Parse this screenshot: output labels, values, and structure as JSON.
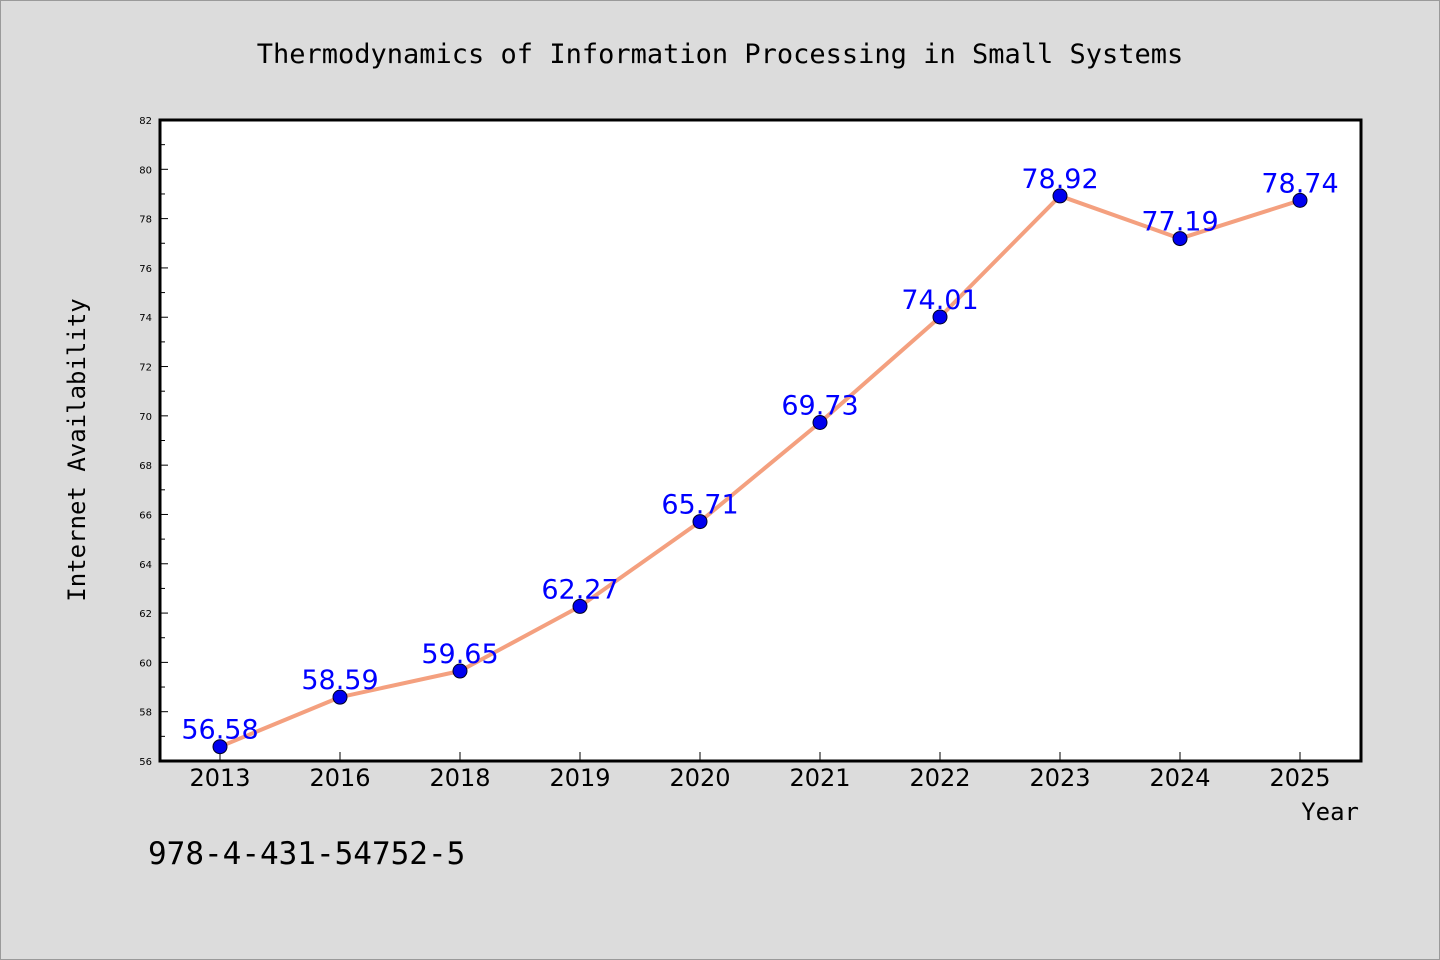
{
  "chart_data": {
    "type": "line",
    "title": "Thermodynamics of Information Processing in Small Systems",
    "xlabel": "Year",
    "ylabel": "Internet Availability",
    "categories": [
      "2013",
      "2016",
      "2018",
      "2019",
      "2020",
      "2021",
      "2022",
      "2023",
      "2024",
      "2025"
    ],
    "series": [
      {
        "values": [
          56.58,
          58.59,
          59.65,
          62.27,
          65.71,
          69.73,
          74.01,
          78.92,
          77.19,
          78.74
        ],
        "data_labels": [
          "56.58",
          "58.59",
          "59.65",
          "62.27",
          "65.71",
          "69.73",
          "74.01",
          "78.92",
          "77.19",
          "78.74"
        ]
      }
    ],
    "ylim": [
      56,
      82
    ],
    "yticks": [
      "56",
      "58",
      "60",
      "62",
      "64",
      "66",
      "68",
      "70",
      "72",
      "74",
      "76",
      "78",
      "80",
      "82"
    ],
    "grid": false,
    "line_color": "#f4a07f",
    "marker_color": "#0000ee",
    "label_color": "#0000ff"
  },
  "footer": {
    "isbn": "978-4-431-54752-5"
  }
}
